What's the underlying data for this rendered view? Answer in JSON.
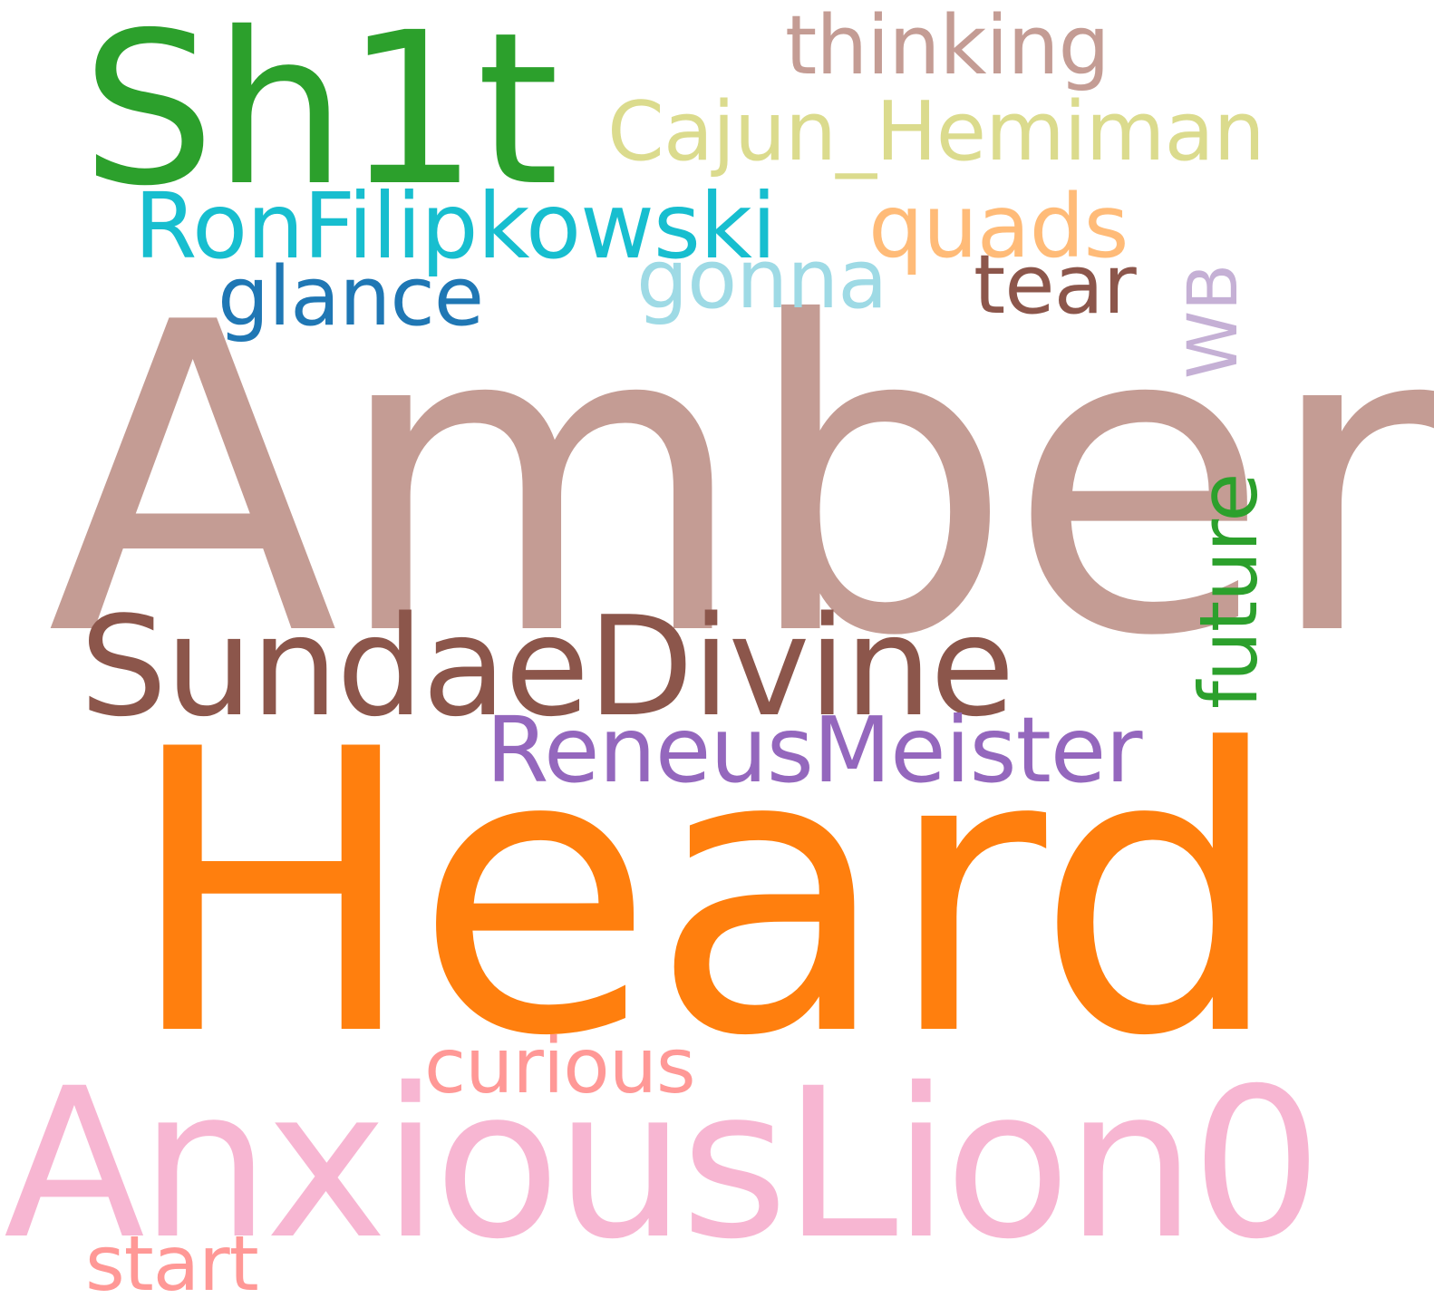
{
  "words": {
    "amber": {
      "text": "Amber",
      "color": "#c49c94"
    },
    "heard": {
      "text": "Heard",
      "color": "#ff7f0e"
    },
    "anxious": {
      "text": "AnxiousLion0",
      "color": "#f7b6d2"
    },
    "sh1t": {
      "text": "Sh1t",
      "color": "#2ca02c"
    },
    "sundae": {
      "text": "SundaeDivine",
      "color": "#8c564b"
    },
    "reneus": {
      "text": "ReneusMeister",
      "color": "#9467bd"
    },
    "ronfil": {
      "text": "RonFilipkowski",
      "color": "#17becf"
    },
    "thinking": {
      "text": "thinking",
      "color": "#c49c94"
    },
    "cajun": {
      "text": "Cajun_Hemiman",
      "color": "#dbdb8d"
    },
    "quads": {
      "text": "quads",
      "color": "#ffbb78"
    },
    "glance": {
      "text": "glance",
      "color": "#1f77b4"
    },
    "gonna": {
      "text": "gonna",
      "color": "#9edae5"
    },
    "tear": {
      "text": "tear",
      "color": "#8c564b"
    },
    "wb": {
      "text": "WB",
      "color": "#c5b0d5"
    },
    "future": {
      "text": "future",
      "color": "#2ca02c"
    },
    "curious": {
      "text": "curious",
      "color": "#ff9896"
    },
    "start": {
      "text": "start",
      "color": "#ff9896"
    }
  }
}
